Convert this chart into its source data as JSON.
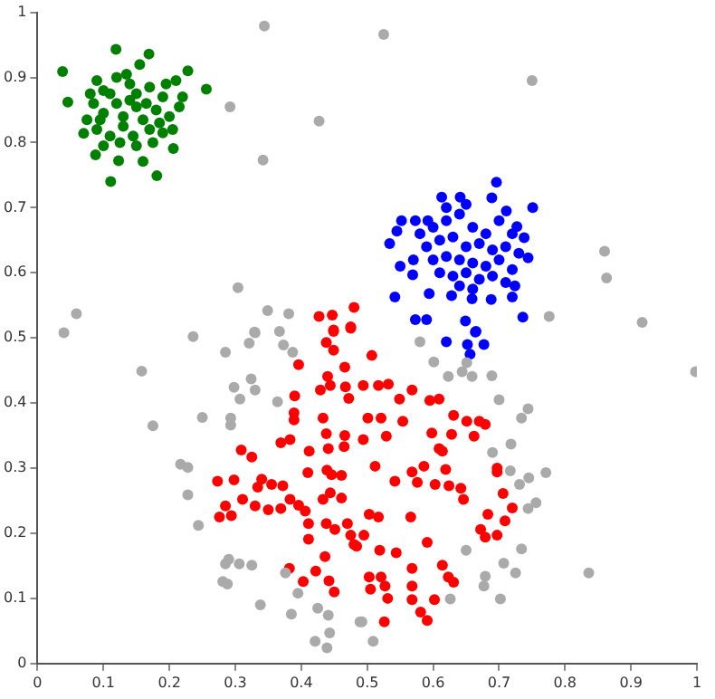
{
  "chart_data": {
    "type": "scatter",
    "xlim": [
      0,
      1
    ],
    "ylim": [
      0,
      1
    ],
    "xticks": [
      0,
      0.1,
      0.2,
      0.3,
      0.4,
      0.5,
      0.6,
      0.7,
      0.8,
      0.9,
      1
    ],
    "yticks": [
      0,
      0.1,
      0.2,
      0.3,
      0.4,
      0.5,
      0.6,
      0.7,
      0.8,
      0.9,
      1
    ],
    "grid": false,
    "legend": false,
    "marker": "circle",
    "series": [
      {
        "color": "#aaaaaa",
        "x": [
          0.344,
          0.427,
          0.292,
          0.342,
          0.304,
          0.059,
          0.04,
          0.349,
          0.381,
          0.367,
          0.329,
          0.236,
          0.525,
          0.75,
          0.86,
          0.863,
          0.917,
          0.776,
          0.998,
          0.836,
          0.7,
          0.744,
          0.734,
          0.718,
          0.69,
          0.717,
          0.771,
          0.745,
          0.731,
          0.756,
          0.744,
          0.734,
          0.707,
          0.725,
          0.679,
          0.677,
          0.702,
          0.626,
          0.65,
          0.492,
          0.509,
          0.58,
          0.601,
          0.623,
          0.644,
          0.659,
          0.689,
          0.651,
          0.158,
          0.175,
          0.217,
          0.228,
          0.228,
          0.244,
          0.25,
          0.285,
          0.321,
          0.33,
          0.373,
          0.387,
          0.298,
          0.324,
          0.33,
          0.307,
          0.364,
          0.293,
          0.293,
          0.29,
          0.285,
          0.306,
          0.325,
          0.281,
          0.288,
          0.338,
          0.376,
          0.395,
          0.385,
          0.425,
          0.441,
          0.421,
          0.443,
          0.439,
          0.489
        ],
        "values": [
          0.979,
          0.833,
          0.855,
          0.773,
          0.577,
          0.537,
          0.508,
          0.542,
          0.537,
          0.51,
          0.509,
          0.502,
          0.966,
          0.895,
          0.633,
          0.592,
          0.524,
          0.533,
          0.448,
          0.139,
          0.405,
          0.391,
          0.377,
          0.337,
          0.324,
          0.296,
          0.293,
          0.285,
          0.275,
          0.247,
          0.238,
          0.176,
          0.154,
          0.139,
          0.134,
          0.119,
          0.099,
          0.099,
          0.174,
          0.064,
          0.034,
          0.494,
          0.463,
          0.441,
          0.448,
          0.441,
          0.442,
          0.462,
          0.449,
          0.365,
          0.306,
          0.301,
          0.259,
          0.212,
          0.378,
          0.478,
          0.492,
          0.508,
          0.489,
          0.478,
          0.424,
          0.437,
          0.42,
          0.406,
          0.402,
          0.377,
          0.366,
          0.16,
          0.153,
          0.153,
          0.151,
          0.126,
          0.122,
          0.09,
          0.139,
          0.108,
          0.076,
          0.085,
          0.074,
          0.034,
          0.047,
          0.024,
          0.064
        ]
      },
      {
        "color": "#008000",
        "x": [
          0.038,
          0.046,
          0.119,
          0.169,
          0.228,
          0.256,
          0.111,
          0.181,
          0.088,
          0.16,
          0.123,
          0.07,
          0.206,
          0.09,
          0.1,
          0.12,
          0.14,
          0.15,
          0.17,
          0.19,
          0.21,
          0.22,
          0.085,
          0.1,
          0.12,
          0.13,
          0.15,
          0.16,
          0.18,
          0.2,
          0.215,
          0.075,
          0.09,
          0.11,
          0.13,
          0.145,
          0.17,
          0.19,
          0.205,
          0.1,
          0.125,
          0.15,
          0.175,
          0.14,
          0.165,
          0.11,
          0.195,
          0.08,
          0.135,
          0.185,
          0.095,
          0.155
        ],
        "values": [
          0.909,
          0.862,
          0.943,
          0.936,
          0.91,
          0.882,
          0.74,
          0.749,
          0.781,
          0.771,
          0.772,
          0.814,
          0.791,
          0.895,
          0.88,
          0.9,
          0.89,
          0.875,
          0.885,
          0.87,
          0.895,
          0.87,
          0.86,
          0.845,
          0.86,
          0.84,
          0.855,
          0.835,
          0.85,
          0.84,
          0.855,
          0.835,
          0.82,
          0.81,
          0.825,
          0.81,
          0.82,
          0.815,
          0.82,
          0.795,
          0.8,
          0.795,
          0.8,
          0.865,
          0.86,
          0.875,
          0.89,
          0.875,
          0.905,
          0.83,
          0.835,
          0.92
        ]
      },
      {
        "color": "#0000ff",
        "x": [
          0.696,
          0.613,
          0.641,
          0.689,
          0.751,
          0.552,
          0.573,
          0.592,
          0.545,
          0.534,
          0.711,
          0.727,
          0.738,
          0.744,
          0.569,
          0.542,
          0.594,
          0.628,
          0.659,
          0.688,
          0.72,
          0.724,
          0.736,
          0.573,
          0.59,
          0.649,
          0.665,
          0.62,
          0.652,
          0.664,
          0.677,
          0.656,
          0.58,
          0.6,
          0.62,
          0.64,
          0.66,
          0.68,
          0.7,
          0.72,
          0.59,
          0.61,
          0.63,
          0.65,
          0.67,
          0.69,
          0.71,
          0.73,
          0.6,
          0.62,
          0.64,
          0.66,
          0.68,
          0.7,
          0.72,
          0.61,
          0.63,
          0.65,
          0.67,
          0.69,
          0.71,
          0.64,
          0.66,
          0.62,
          0.65,
          0.57,
          0.55
        ],
        "values": [
          0.739,
          0.716,
          0.716,
          0.715,
          0.7,
          0.68,
          0.68,
          0.68,
          0.664,
          0.645,
          0.695,
          0.671,
          0.654,
          0.623,
          0.597,
          0.563,
          0.568,
          0.565,
          0.56,
          0.559,
          0.563,
          0.58,
          0.532,
          0.528,
          0.528,
          0.526,
          0.51,
          0.494,
          0.49,
          0.509,
          0.49,
          0.475,
          0.66,
          0.67,
          0.68,
          0.69,
          0.67,
          0.66,
          0.68,
          0.66,
          0.64,
          0.65,
          0.655,
          0.64,
          0.645,
          0.635,
          0.64,
          0.63,
          0.62,
          0.625,
          0.62,
          0.615,
          0.61,
          0.62,
          0.605,
          0.6,
          0.595,
          0.6,
          0.59,
          0.595,
          0.585,
          0.58,
          0.575,
          0.7,
          0.705,
          0.62,
          0.61
        ]
      },
      {
        "color": "#ff0000",
        "x": [
          0.273,
          0.276,
          0.285,
          0.294,
          0.298,
          0.311,
          0.309,
          0.325,
          0.33,
          0.334,
          0.34,
          0.355,
          0.372,
          0.35,
          0.369,
          0.383,
          0.383,
          0.369,
          0.389,
          0.389,
          0.39,
          0.396,
          0.396,
          0.406,
          0.411,
          0.411,
          0.412,
          0.41,
          0.382,
          0.403,
          0.422,
          0.436,
          0.442,
          0.45,
          0.429,
          0.44,
          0.444,
          0.433,
          0.438,
          0.441,
          0.439,
          0.446,
          0.433,
          0.444,
          0.438,
          0.451,
          0.438,
          0.449,
          0.449,
          0.475,
          0.466,
          0.467,
          0.472,
          0.466,
          0.465,
          0.461,
          0.461,
          0.47,
          0.475,
          0.48,
          0.427,
          0.447,
          0.48,
          0.449,
          0.475,
          0.507,
          0.494,
          0.517,
          0.532,
          0.549,
          0.568,
          0.595,
          0.609,
          0.631,
          0.651,
          0.67,
          0.679,
          0.662,
          0.628,
          0.598,
          0.554,
          0.521,
          0.501,
          0.494,
          0.529,
          0.609,
          0.614,
          0.512,
          0.568,
          0.586,
          0.619,
          0.697,
          0.697,
          0.542,
          0.576,
          0.603,
          0.624,
          0.642,
          0.646,
          0.706,
          0.72,
          0.709,
          0.683,
          0.672,
          0.697,
          0.679,
          0.591,
          0.566,
          0.517,
          0.503,
          0.495,
          0.484,
          0.519,
          0.544,
          0.614,
          0.623,
          0.568,
          0.568,
          0.521,
          0.503,
          0.505,
          0.527,
          0.531,
          0.568,
          0.581,
          0.591,
          0.602,
          0.526,
          0.631
        ],
        "values": [
          0.28,
          0.225,
          0.242,
          0.227,
          0.282,
          0.252,
          0.328,
          0.317,
          0.242,
          0.271,
          0.283,
          0.275,
          0.273,
          0.236,
          0.238,
          0.252,
          0.344,
          0.339,
          0.374,
          0.385,
          0.411,
          0.459,
          0.243,
          0.234,
          0.215,
          0.191,
          0.326,
          0.293,
          0.146,
          0.126,
          0.142,
          0.164,
          0.127,
          0.11,
          0.42,
          0.441,
          0.427,
          0.377,
          0.353,
          0.33,
          0.297,
          0.29,
          0.252,
          0.262,
          0.215,
          0.206,
          0.493,
          0.481,
          0.51,
          0.515,
          0.455,
          0.425,
          0.407,
          0.35,
          0.333,
          0.289,
          0.254,
          0.215,
          0.197,
          0.183,
          0.533,
          0.535,
          0.547,
          0.512,
          0.517,
          0.473,
          0.427,
          0.427,
          0.429,
          0.406,
          0.42,
          0.404,
          0.406,
          0.381,
          0.372,
          0.372,
          0.367,
          0.349,
          0.352,
          0.354,
          0.372,
          0.377,
          0.377,
          0.344,
          0.349,
          0.33,
          0.326,
          0.303,
          0.294,
          0.303,
          0.298,
          0.3,
          0.294,
          0.28,
          0.278,
          0.275,
          0.273,
          0.269,
          0.252,
          0.261,
          0.239,
          0.219,
          0.229,
          0.206,
          0.197,
          0.194,
          0.186,
          0.225,
          0.225,
          0.229,
          0.197,
          0.18,
          0.174,
          0.17,
          0.151,
          0.133,
          0.146,
          0.119,
          0.133,
          0.133,
          0.114,
          0.119,
          0.1,
          0.098,
          0.079,
          0.066,
          0.098,
          0.064,
          0.125
        ]
      }
    ]
  }
}
